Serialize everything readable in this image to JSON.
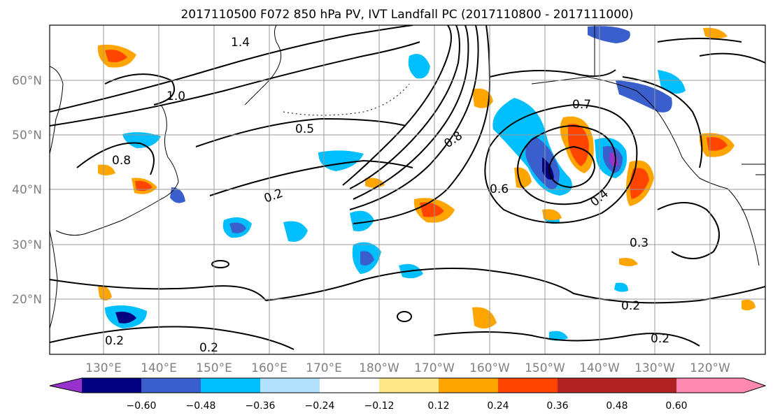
{
  "title": "2017110500 F072 850 hPa PV, IVT Landfall PC (2017110800 - 2017111000)",
  "lat_labels": [
    "60°N",
    "50°N",
    "40°N",
    "30°N",
    "20°N"
  ],
  "lon_labels": [
    "130°E",
    "140°E",
    "150°E",
    "160°E",
    "170°E",
    "180°W",
    "170°W",
    "160°W",
    "150°W",
    "140°W",
    "130°W",
    "120°W"
  ],
  "contour_labels": [
    "0.8",
    "0.6",
    "0.4",
    "0.5",
    "0.2",
    "0.3",
    "1.0",
    "1.4",
    "0.7",
    "0.2",
    "0.8",
    "0.2",
    "0.2",
    "0.2"
  ],
  "colorbar": {
    "ticks": [
      "−0.60",
      "−0.48",
      "−0.36",
      "−0.24",
      "−0.12",
      "0.12",
      "0.24",
      "0.36",
      "0.48",
      "0.60"
    ],
    "colors": [
      "#9932cc",
      "#000080",
      "#3a5fcd",
      "#00bfff",
      "#b2e2ff",
      "#ffffff",
      "#ffe88a",
      "#ffa500",
      "#ff4500",
      "#b22222",
      "#ff88b0"
    ]
  }
}
